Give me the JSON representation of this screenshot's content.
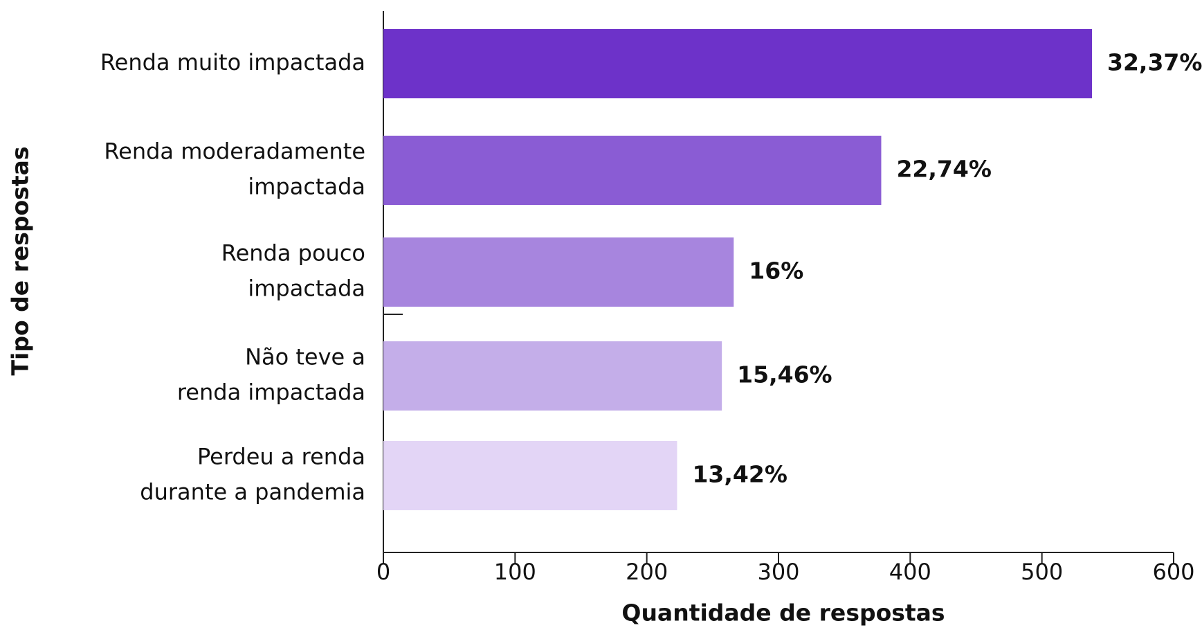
{
  "chart_data": {
    "type": "barh",
    "categories": [
      [
        "Renda muito impactada"
      ],
      [
        "Renda moderadamente",
        "impactada"
      ],
      [
        "Renda pouco",
        "impactada"
      ],
      [
        "Não teve a",
        "renda impactada"
      ],
      [
        "Perdeu a renda",
        "durante a pandemia"
      ]
    ],
    "values": [
      538,
      378,
      266,
      257,
      223
    ],
    "value_labels": [
      "32,37%",
      "22,74%",
      "16%",
      "15,46%",
      "13,42%"
    ],
    "colors": [
      "#6d32c9",
      "#8a5cd4",
      "#a785de",
      "#c4aee9",
      "#e3d5f6"
    ],
    "xlim": [
      0,
      600
    ],
    "xticks": [
      0,
      100,
      200,
      300,
      400,
      500,
      600
    ],
    "xlabel": "Quantidade de respostas",
    "ylabel": "Tipo de respostas"
  }
}
